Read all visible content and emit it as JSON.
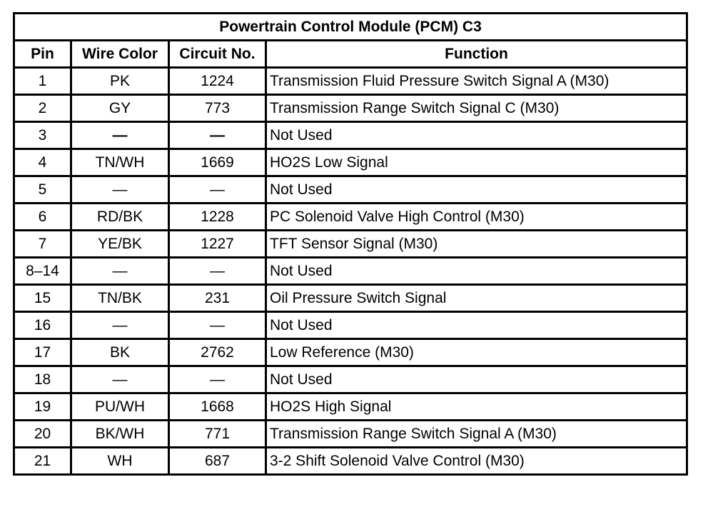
{
  "title": "Powertrain Control Module (PCM) C3",
  "headers": {
    "pin": "Pin",
    "wire_color": "Wire Color",
    "circuit": "Circuit No.",
    "function": "Function"
  },
  "rows": [
    {
      "pin": "1",
      "wire": "PK",
      "circuit": "1224",
      "function": "Transmission Fluid Pressure Switch Signal A (M30)"
    },
    {
      "pin": "2",
      "wire": "GY",
      "circuit": "773",
      "function": "Transmission Range Switch Signal C (M30)"
    },
    {
      "pin": "3",
      "wire": "—",
      "circuit": "—",
      "function": "Not Used"
    },
    {
      "pin": "4",
      "wire": "TN/WH",
      "circuit": "1669",
      "function": "HO2S Low Signal"
    },
    {
      "pin": "5",
      "wire": "—",
      "circuit": "—",
      "function": "Not Used"
    },
    {
      "pin": "6",
      "wire": "RD/BK",
      "circuit": "1228",
      "function": "PC Solenoid Valve High Control (M30)"
    },
    {
      "pin": "7",
      "wire": "YE/BK",
      "circuit": "1227",
      "function": "TFT Sensor Signal (M30)"
    },
    {
      "pin": "8–14",
      "wire": "—",
      "circuit": "—",
      "function": "Not Used"
    },
    {
      "pin": "15",
      "wire": "TN/BK",
      "circuit": "231",
      "function": "Oil Pressure Switch Signal"
    },
    {
      "pin": "16",
      "wire": "—",
      "circuit": "—",
      "function": "Not Used"
    },
    {
      "pin": "17",
      "wire": "BK",
      "circuit": "2762",
      "function": "Low Reference (M30)"
    },
    {
      "pin": "18",
      "wire": "—",
      "circuit": "—",
      "function": "Not Used"
    },
    {
      "pin": "19",
      "wire": "PU/WH",
      "circuit": "1668",
      "function": "HO2S High Signal"
    },
    {
      "pin": "20",
      "wire": "BK/WH",
      "circuit": "771",
      "function": "Transmission Range Switch Signal A (M30)"
    },
    {
      "pin": "21",
      "wire": "WH",
      "circuit": "687",
      "function": "3-2 Shift Solenoid Valve Control (M30)"
    }
  ]
}
